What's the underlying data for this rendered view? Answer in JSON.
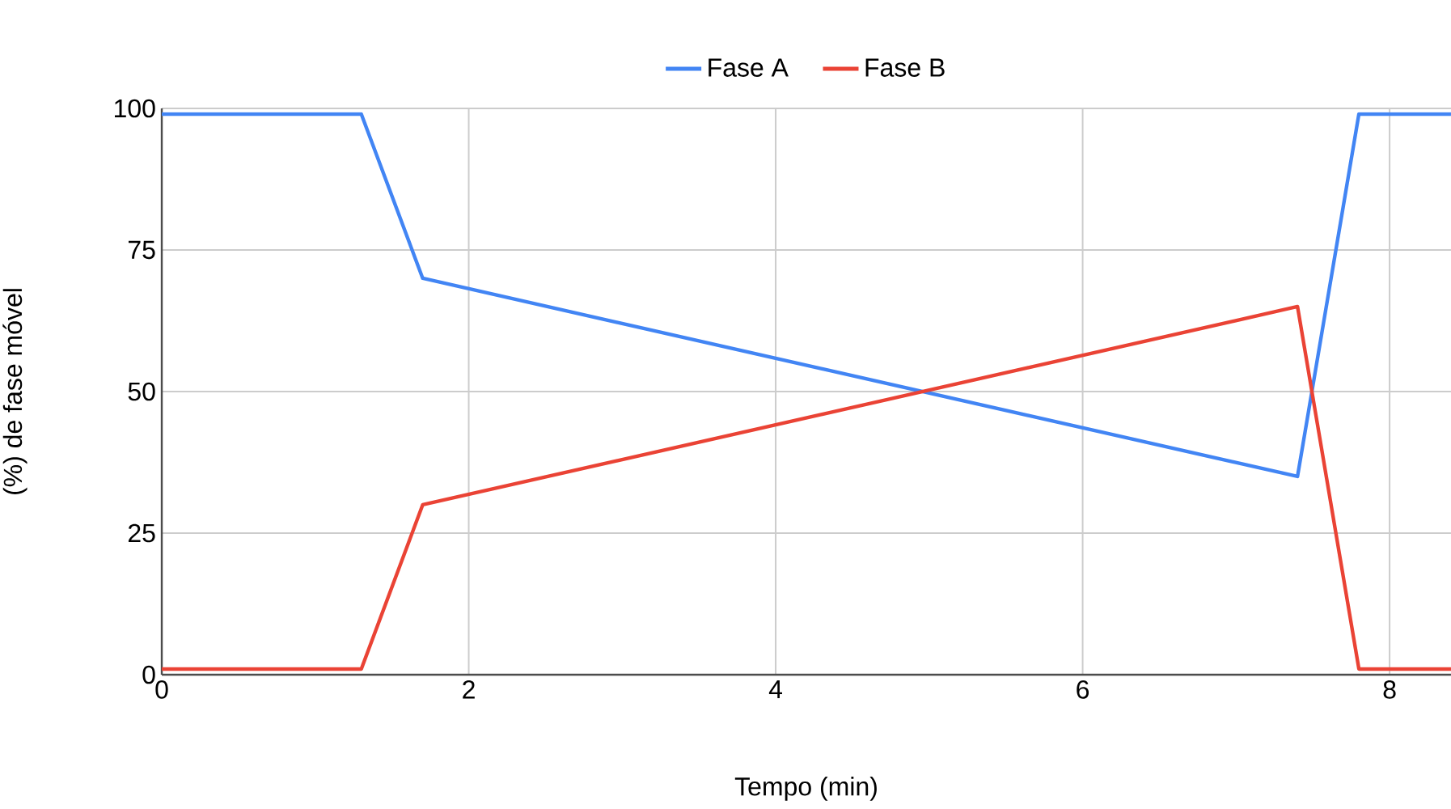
{
  "chart_data": {
    "type": "line",
    "xlabel": "Tempo (min)",
    "ylabel": "(%) de fase móvel",
    "xlim": [
      0,
      8.4
    ],
    "xticks": [
      0,
      2,
      4,
      6,
      8
    ],
    "ylim": [
      0,
      100
    ],
    "yticks": [
      0,
      25,
      50,
      75,
      100
    ],
    "grid": true,
    "legend": "top",
    "marker": "none",
    "line_style": "solid",
    "series": [
      {
        "name": "Fase A",
        "color": "#4285f4",
        "x": [
          0,
          1.3,
          1.7,
          7.4,
          7.8,
          8.4
        ],
        "values": [
          99,
          99,
          70,
          35,
          99,
          99
        ]
      },
      {
        "name": "Fase B",
        "color": "#ea4335",
        "x": [
          0,
          1.3,
          1.7,
          7.4,
          7.8,
          8.4
        ],
        "values": [
          1,
          1,
          30,
          65,
          1,
          1
        ]
      }
    ]
  }
}
